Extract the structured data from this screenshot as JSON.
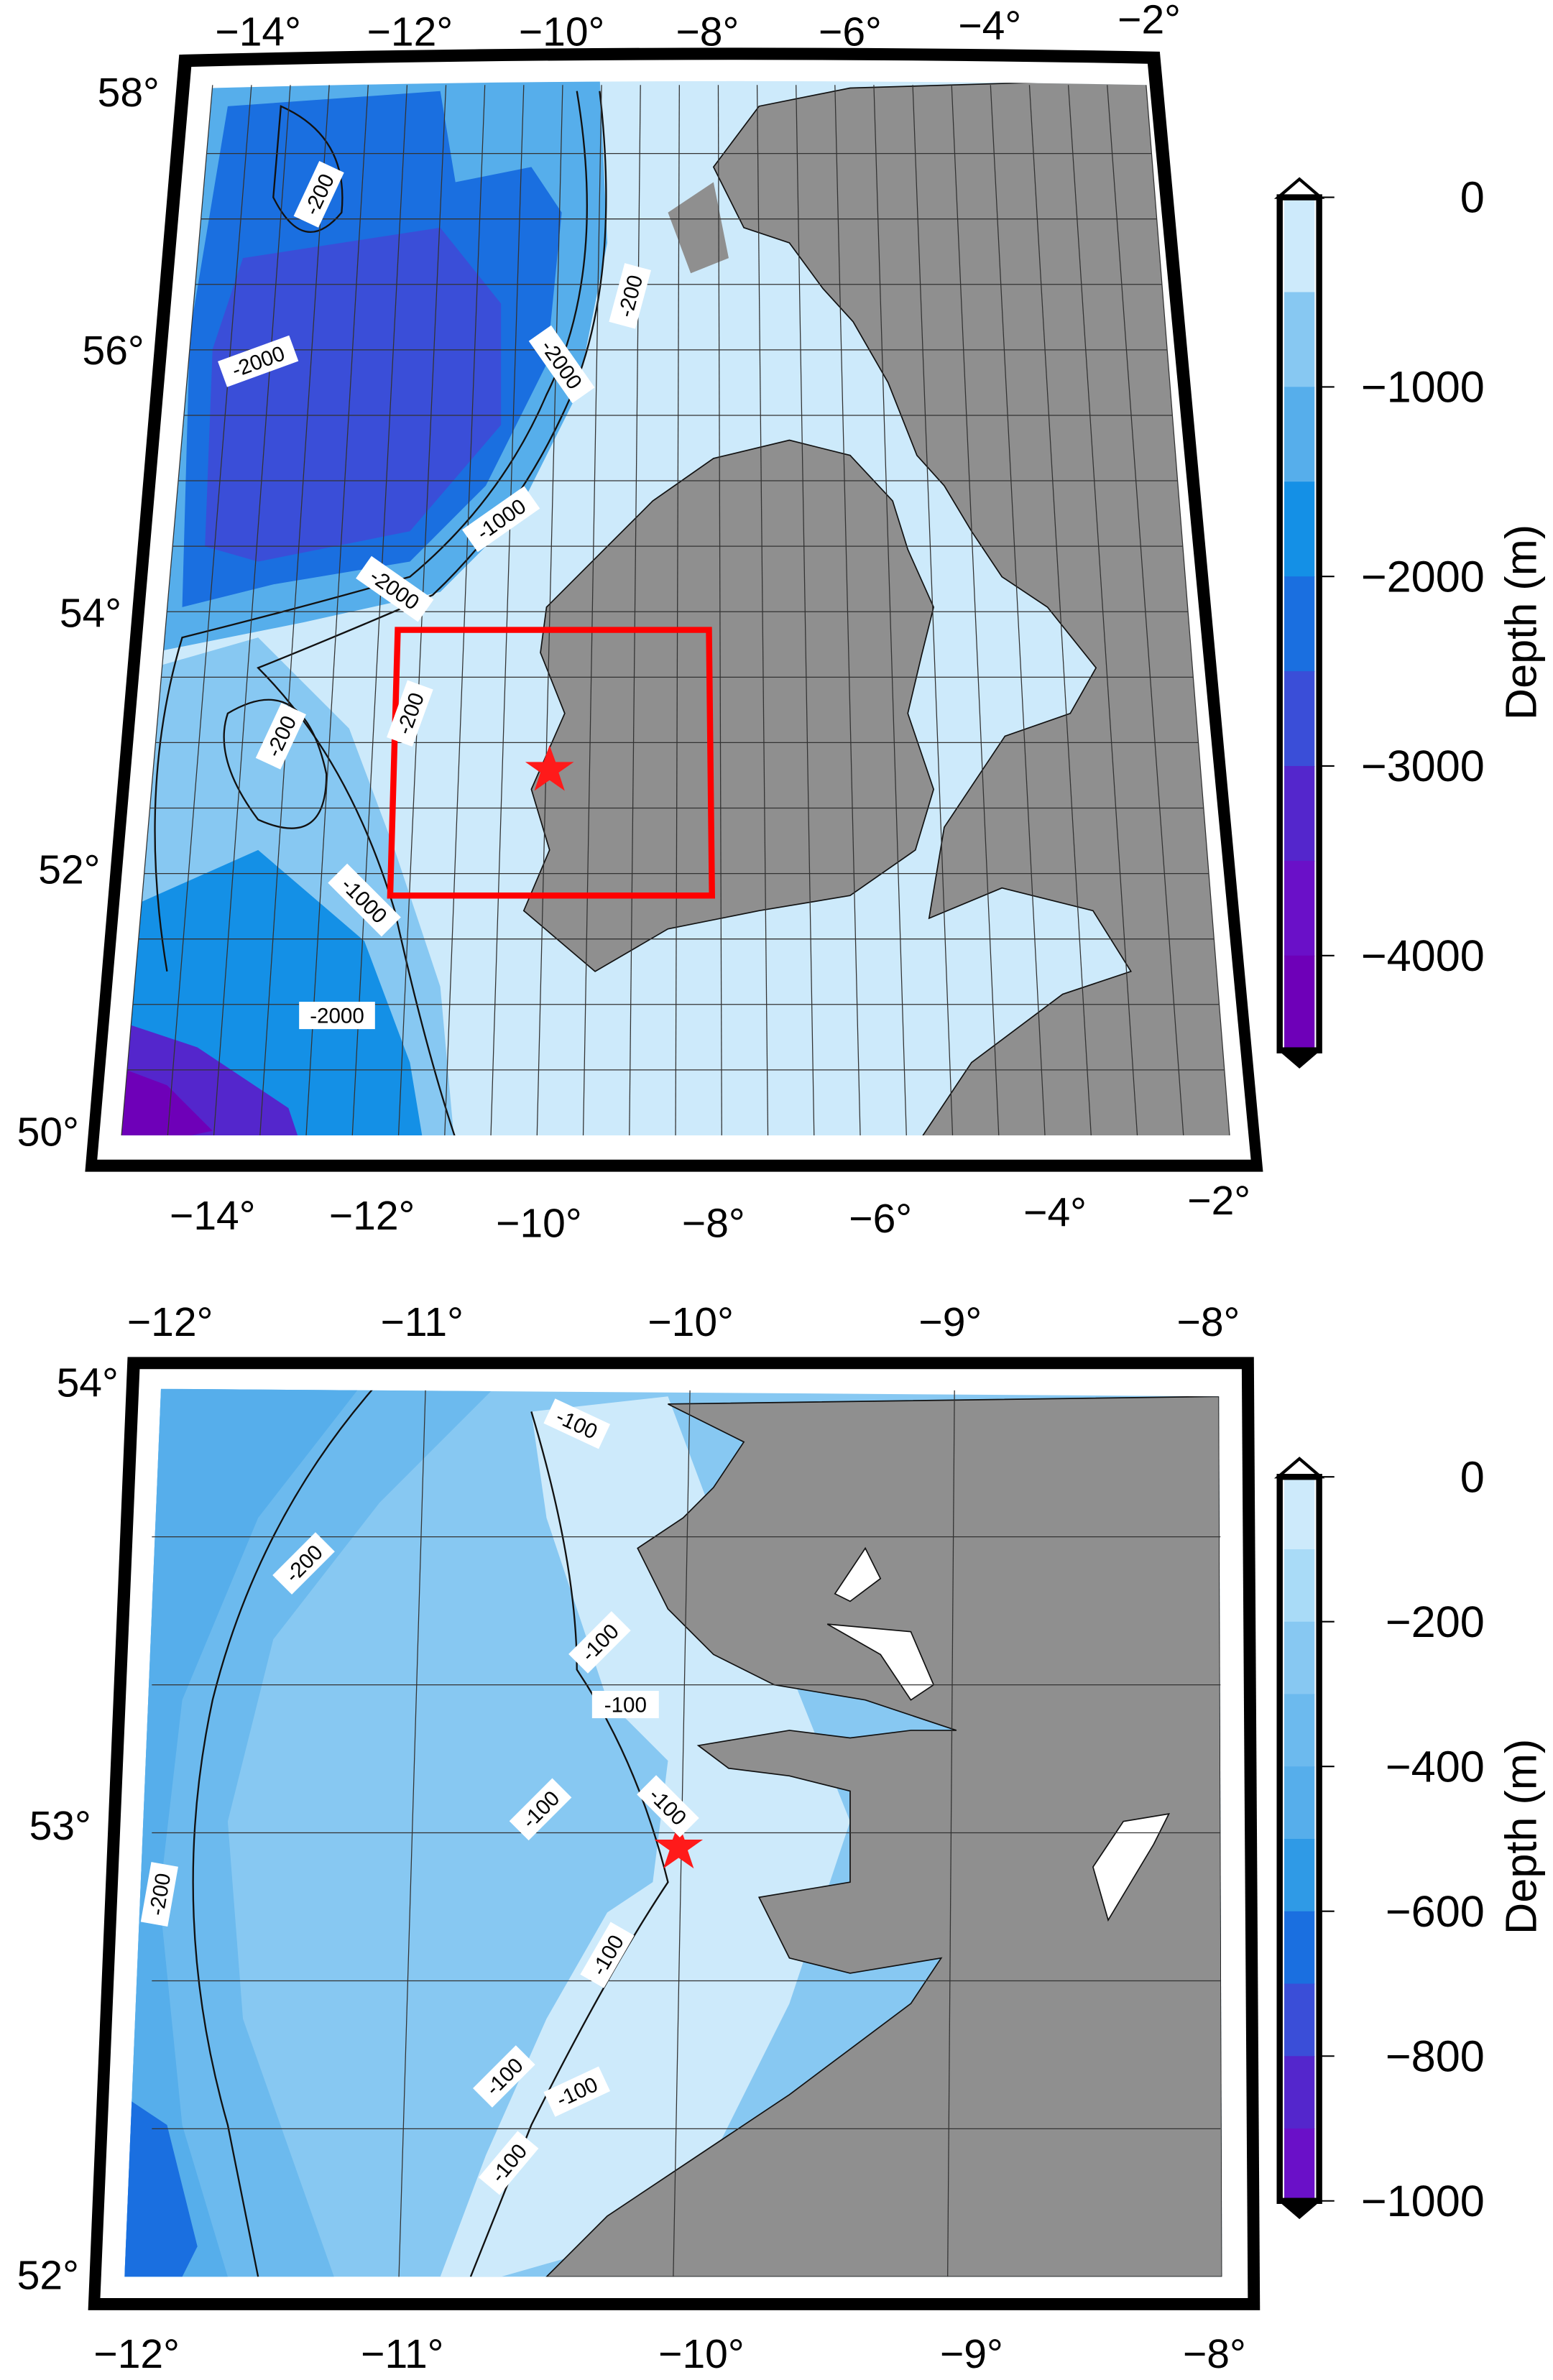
{
  "top_map": {
    "lon_ticks_top": [
      "−14°",
      "−12°",
      "−10°",
      "−8°",
      "−6°",
      "−4°",
      "−2°"
    ],
    "lon_ticks_bottom": [
      "−14°",
      "−12°",
      "−10°",
      "−8°",
      "−6°",
      "−4°",
      "−2°"
    ],
    "lat_ticks": [
      "58°",
      "56°",
      "54°",
      "52°",
      "50°"
    ],
    "contour_labels": [
      "-200",
      "-2000",
      "-2000",
      "-200",
      "-1000",
      "-2000",
      "-200",
      "-200",
      "-1000",
      "-2000"
    ],
    "highlight_box_color": "#ff0000",
    "site_marker": "red-star",
    "colorbar": {
      "title": "Depth (m)",
      "ticks": [
        "0",
        "−1000",
        "−2000",
        "−3000",
        "−4000"
      ],
      "range": [
        -4500,
        0
      ],
      "colors": [
        "#cdeafb",
        "#87c8f2",
        "#56aeeb",
        "#1490e6",
        "#1a6fe0",
        "#3a4ed8",
        "#5426cc",
        "#6a10c8",
        "#6e00b8"
      ]
    }
  },
  "bottom_map": {
    "lon_ticks_top": [
      "−12°",
      "−11°",
      "−10°",
      "−9°",
      "−8°"
    ],
    "lon_ticks_bottom": [
      "−12°",
      "−11°",
      "−10°",
      "−9°",
      "−8°"
    ],
    "lat_ticks": [
      "54°",
      "53°",
      "52°"
    ],
    "contour_labels": [
      "-100",
      "-200",
      "-100",
      "-100",
      "-100",
      "-100",
      "-200",
      "-100",
      "-100",
      "-100",
      "-100"
    ],
    "site_marker": "red-star",
    "colorbar": {
      "title": "Depth (m)",
      "ticks": [
        "0",
        "−200",
        "−400",
        "−600",
        "−800",
        "−1000"
      ],
      "range": [
        -1000,
        0
      ],
      "colors": [
        "#cdeafb",
        "#a9dbf7",
        "#87c8f2",
        "#6cbaee",
        "#56aeeb",
        "#2f9ae6",
        "#1a6fe0",
        "#3a4ed8",
        "#5426cc",
        "#6a10c8"
      ]
    }
  },
  "land_color": "#8f8f8f",
  "ocean_shallow_color": "#cdeafb"
}
